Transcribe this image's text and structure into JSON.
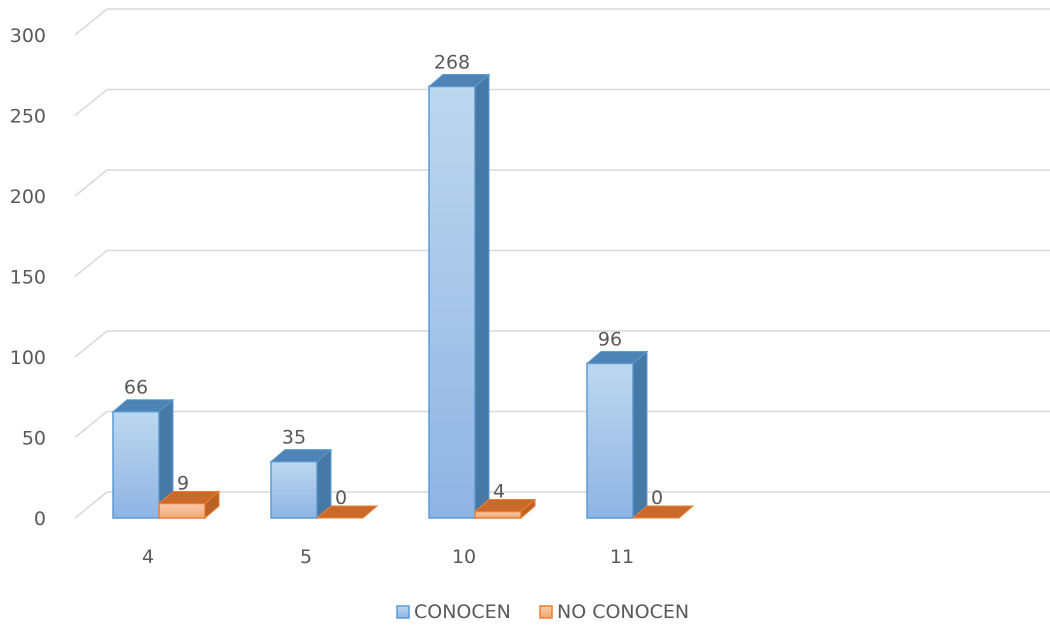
{
  "chart_data": {
    "type": "bar",
    "style": "3d-clustered-column",
    "categories": [
      "4",
      "5",
      "10",
      "11"
    ],
    "series": [
      {
        "name": "CONOCEN",
        "values": [
          66,
          35,
          268,
          96
        ],
        "color": "#9DC3E6",
        "edge": "#5B9BD5"
      },
      {
        "name": "NO CONOCEN",
        "values": [
          9,
          0,
          4,
          0
        ],
        "color": "#F4B183",
        "edge": "#ED7D31"
      }
    ],
    "yticks": [
      "0",
      "50",
      "100",
      "150",
      "200",
      "250",
      "300"
    ],
    "ylim": [
      0,
      300
    ],
    "grid": true,
    "legend_position": "bottom",
    "data_labels": true
  }
}
